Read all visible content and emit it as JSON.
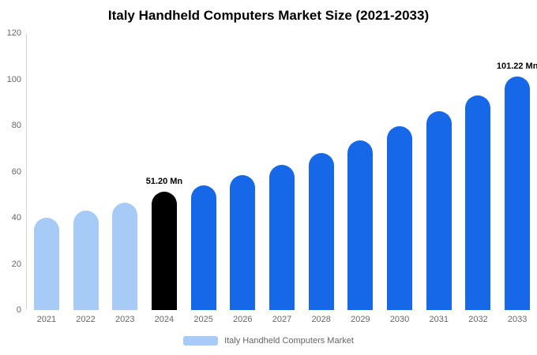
{
  "title": "Italy Handheld Computers Market Size (2021-2033)",
  "legend": {
    "label": "Italy Handheld Computers Market"
  },
  "chart_data": {
    "type": "bar",
    "title": "Italy Handheld Computers Market Size (2021-2033)",
    "categories": [
      "2021",
      "2022",
      "2023",
      "2024",
      "2025",
      "2026",
      "2027",
      "2028",
      "2029",
      "2030",
      "2031",
      "2032",
      "2033"
    ],
    "values": [
      40,
      43,
      46.5,
      51.2,
      54,
      58.5,
      63,
      68,
      73.5,
      79.5,
      86,
      93,
      101.22
    ],
    "bar_color_keys": [
      "light",
      "light",
      "light",
      "black",
      "blue",
      "blue",
      "blue",
      "blue",
      "blue",
      "blue",
      "blue",
      "blue",
      "blue"
    ],
    "colors": {
      "light": "#a6cbf7",
      "blue": "#1668e8",
      "black": "#000000"
    },
    "annotations": [
      {
        "index": 3,
        "text": "51.20 Mn"
      },
      {
        "index": 12,
        "text": "101.22 Mn"
      }
    ],
    "xlabel": "",
    "ylabel": "",
    "ylim": [
      0,
      120
    ],
    "yticks": [
      0,
      20,
      40,
      60,
      80,
      100,
      120
    ],
    "grid": false,
    "legend_entries": [
      "Italy Handheld Computers Market"
    ],
    "legend_position": "bottom"
  }
}
